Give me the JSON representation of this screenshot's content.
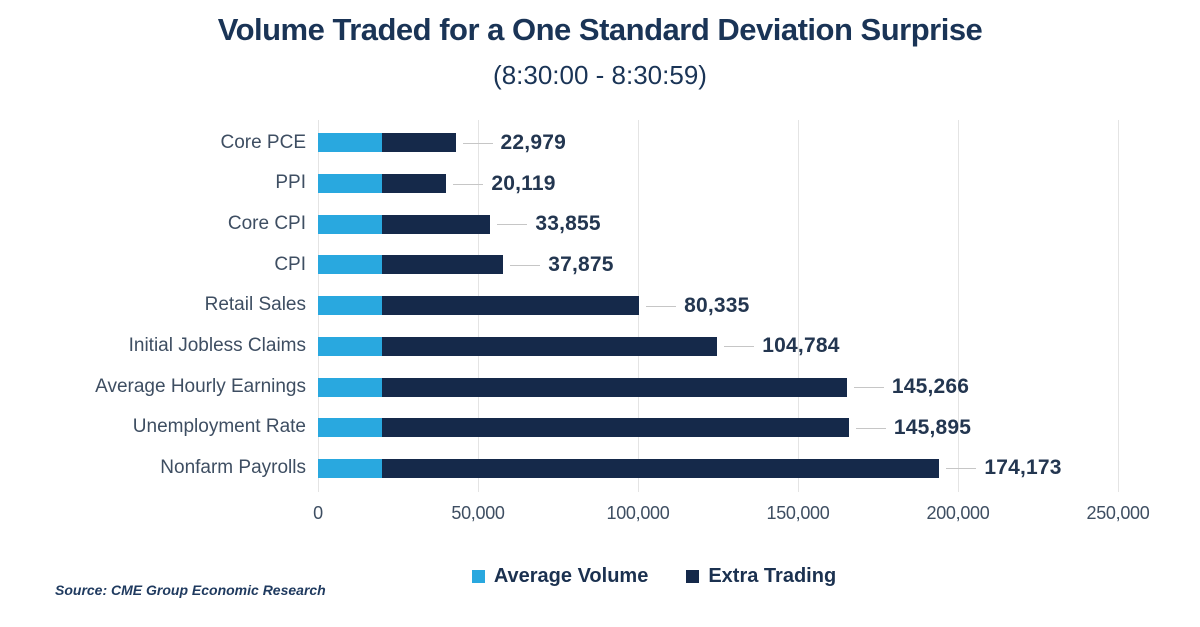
{
  "source": "Source: CME Group Economic Research",
  "colors": {
    "average_volume": "#29A8DF",
    "extra_trading": "#15294A",
    "grid": "#E4E4E4",
    "leader_line": "#C6C6C6",
    "title_text": "#1A3456"
  },
  "chart_data": {
    "type": "bar",
    "orientation": "horizontal",
    "stacked": true,
    "title": "Volume Traded for a One Standard Deviation Surprise",
    "subtitle": "(8:30:00 - 8:30:59)",
    "categories": [
      "Core PCE",
      "PPI",
      "Core CPI",
      "CPI",
      "Retail Sales",
      "Initial Jobless Claims",
      "Average Hourly Earnings",
      "Unemployment Rate",
      "Nonfarm Payrolls"
    ],
    "series": [
      {
        "name": "Average Volume",
        "color": "#29A8DF",
        "values": [
          20000,
          20000,
          20000,
          20000,
          20000,
          20000,
          20000,
          20000,
          20000
        ]
      },
      {
        "name": "Extra Trading",
        "color": "#15294A",
        "values": [
          22979,
          20119,
          33855,
          37875,
          80335,
          104784,
          145266,
          145895,
          174173
        ]
      }
    ],
    "data_labels": [
      "22,979",
      "20,119",
      "33,855",
      "37,875",
      "80,335",
      "104,784",
      "145,266",
      "145,895",
      "174,173"
    ],
    "x_ticks": [
      "0",
      "50,000",
      "100,000",
      "150,000",
      "200,000",
      "250,000"
    ],
    "x_tick_values": [
      0,
      50000,
      100000,
      150000,
      200000,
      250000
    ],
    "xlim": [
      0,
      250000
    ],
    "xlabel": "",
    "ylabel": "",
    "grid": "vertical",
    "legend_position": "bottom"
  }
}
